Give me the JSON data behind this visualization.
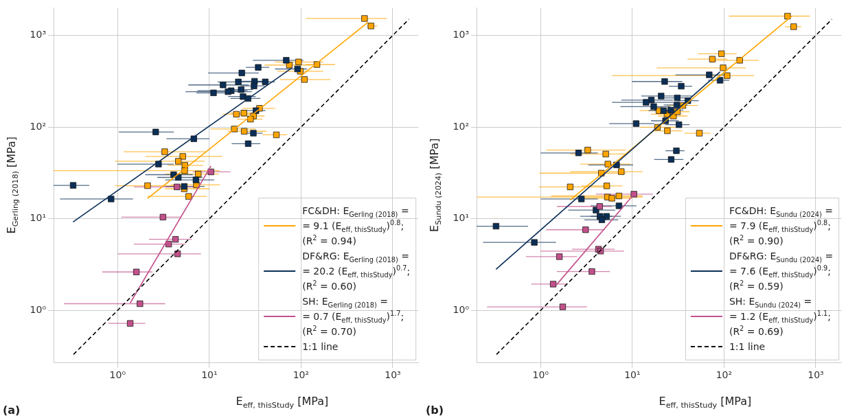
{
  "chart_data": [
    {
      "type": "scatter",
      "xlabel": "E$_{eff, thisStudy}$ [MPa]",
      "ylabel": "E$_{Gerling (2018)}$ [MPa]",
      "annotations": [
        "(a)"
      ],
      "log": "xy",
      "grid": true,
      "legend": "bottom right",
      "xlim": [
        0.2,
        1900
      ],
      "ylim": [
        0.27,
        2000
      ],
      "xticks": [
        {
          "value": 1,
          "label": "10⁰"
        },
        {
          "value": 10,
          "label": "10¹"
        },
        {
          "value": 100,
          "label": "10²"
        },
        {
          "value": 1000,
          "label": "10³"
        }
      ],
      "yticks": [
        {
          "value": 1,
          "label": "10⁰"
        },
        {
          "value": 10,
          "label": "10¹"
        },
        {
          "value": 100,
          "label": "10²"
        },
        {
          "value": 1000,
          "label": "10³"
        }
      ],
      "series": [
        {
          "marker": "square",
          "color": "#ffa500",
          "x": [
            492,
            578,
            94,
            74.5,
            149,
            98,
            109,
            35.2,
            19.7,
            23.8,
            30.3,
            28.1,
            18.7,
            24,
            53.8,
            3.26,
            5.13,
            4.59,
            5.41,
            5.38,
            7.57,
            2.12,
            5.32,
            7.22,
            5.95
          ],
          "values": [
            1530,
            1267,
            513,
            475,
            481,
            406,
            330,
            160,
            138,
            142,
            132,
            122,
            95.2,
            89.9,
            82.2,
            53.8,
            47.8,
            42.3,
            38.2,
            33.4,
            30.7,
            22.9,
            21.2,
            23.4,
            17.5
          ],
          "xerrors": [
            [
              113,
              863
            ],
            [
              522,
              681
            ],
            [
              52,
              175
            ],
            [
              40,
              134
            ],
            [
              112,
              235
            ],
            [
              55,
              175
            ],
            [
              59,
              209
            ],
            [
              23,
              52
            ],
            [
              14,
              34
            ],
            [
              17,
              35
            ],
            [
              22,
              40
            ],
            [
              20,
              38
            ],
            [
              10.3,
              32
            ],
            [
              16,
              42
            ],
            [
              38,
              70
            ],
            [
              1.16,
              9.4
            ],
            [
              2,
              13.8
            ],
            [
              0.94,
              8.9
            ],
            [
              3.5,
              8.5
            ],
            [
              0.2,
              13
            ],
            [
              3.3,
              12.7
            ],
            [
              0.94,
              4.9
            ],
            [
              3.3,
              10
            ],
            [
              3.8,
              13
            ],
            [
              2.1,
              9.4
            ]
          ]
        },
        {
          "marker": "square",
          "color": "#0b2f57",
          "x": [
            68.9,
            91.5,
            34.1,
            22.6,
            20.7,
            31.1,
            40.7,
            14.1,
            30.7,
            17.3,
            16,
            22.2,
            11.1,
            23.3,
            26.4,
            32.2,
            2.6,
            6.77,
            30.2,
            26.5,
            2.79,
            4.08,
            4.59,
            7.14,
            5.32,
            0.327,
            0.848
          ],
          "values": [
            535,
            430,
            448,
            389,
            311,
            316,
            311,
            288,
            281,
            249,
            243,
            256,
            236,
            215,
            205,
            151,
            88.3,
            74.5,
            85.7,
            65.8,
            39.4,
            30.2,
            28.2,
            26.5,
            22.5,
            23.1,
            16.4
          ],
          "xerrors": [
            [
              29.8,
              106
            ],
            [
              52,
              116
            ],
            [
              25,
              45
            ],
            [
              9.7,
              34.5
            ],
            [
              12.3,
              45
            ],
            [
              22,
              42
            ],
            [
              31,
              52
            ],
            [
              5.9,
              27
            ],
            [
              22,
              40
            ],
            [
              7.4,
              26
            ],
            [
              5.5,
              29
            ],
            [
              15,
              30
            ],
            [
              7.2,
              17
            ],
            [
              16,
              32
            ],
            [
              17,
              36
            ],
            [
              22,
              41
            ],
            [
              1.03,
              4.1
            ],
            [
              3.4,
              10
            ],
            [
              23.5,
              38
            ],
            [
              17.5,
              36
            ],
            [
              1,
              4.1
            ],
            [
              2,
              6.6
            ],
            [
              2.7,
              8.4
            ],
            [
              3.3,
              11.3
            ],
            [
              3.3,
              8.9
            ],
            [
              0.2,
              0.49
            ],
            [
              0.235,
              1.47
            ]
          ]
        },
        {
          "marker": "square",
          "color": "#c2508b",
          "x": [
            10.4,
            4.43,
            3.12,
            4.27,
            3.6,
            4.5,
            1.6,
            1.75,
            1.37
          ],
          "values": [
            32.4,
            22.2,
            10.4,
            5.95,
            5.28,
            4.13,
            2.62,
            1.18,
            0.72
          ],
          "xerrors": [
            [
              6.6,
              17
            ],
            [
              1.5,
              7.4
            ],
            [
              1.1,
              4.9
            ],
            [
              2.2,
              6.4
            ],
            [
              1.5,
              5.5
            ],
            [
              1,
              8.1
            ],
            [
              0.68,
              2.4
            ],
            [
              0.26,
              3.3
            ],
            [
              0.79,
              2
            ]
          ]
        },
        {
          "type": "line",
          "name": "FC&DH: E$_{Gerling (2018)}$ =\n= 9.1 (E$_{eff, thisStudy}$)$^{0.8}$;\n(R$^{2}$ = 0.94)",
          "color": "#ffa500",
          "x": [
            2.12,
            538
          ],
          "values": [
            16.6,
            1390
          ]
        },
        {
          "type": "line",
          "name": "DF&RG: E$_{Gerling (2018)}$ =\n= 20.2 (E$_{eff, thisStudy}$)$^{0.7}$;\n(R$^{2}$ = 0.60)",
          "color": "#0b2f57",
          "x": [
            0.326,
            79
          ],
          "values": [
            9.2,
            440
          ]
        },
        {
          "type": "line",
          "name": "SH: E$_{Gerling (2018)}$ =\n= 0.7 (E$_{eff, thisStudy}$)$^{1.7}$;\n(R$^{2}$ = 0.70)",
          "color": "#c2508b",
          "x": [
            1.37,
            10.4
          ],
          "values": [
            1.2,
            37.5
          ]
        },
        {
          "type": "line",
          "name": "1:1 line",
          "color": "#000000",
          "line_style": "dashed",
          "x": [
            0.33,
            1500
          ],
          "values": [
            0.33,
            1500
          ]
        }
      ]
    },
    {
      "type": "scatter",
      "xlabel": "E$_{eff, thisStudy}$ [MPa]",
      "ylabel": "E$_{Sundu (2024)}$ [MPa]",
      "annotations": [
        "(b)"
      ],
      "log": "xy",
      "grid": true,
      "legend": "bottom right",
      "xlim": [
        0.2,
        1900
      ],
      "ylim": [
        0.27,
        2000
      ],
      "xticks": [
        {
          "value": 1,
          "label": "10⁰"
        },
        {
          "value": 10,
          "label": "10¹"
        },
        {
          "value": 100,
          "label": "10²"
        },
        {
          "value": 1000,
          "label": "10³"
        }
      ],
      "yticks": [
        {
          "value": 1,
          "label": "10⁰"
        },
        {
          "value": 10,
          "label": "10¹"
        },
        {
          "value": 100,
          "label": "10²"
        },
        {
          "value": 1000,
          "label": "10³"
        }
      ],
      "series": [
        {
          "marker": "square",
          "color": "#ffa500",
          "x": [
            492,
            574,
            93.7,
            74.5,
            148,
            97.7,
            108,
            35.6,
            19.5,
            23.9,
            28.1,
            30.9,
            18.8,
            24.1,
            53.8,
            3.26,
            5.13,
            5.41,
            4.59,
            7.57,
            2.1,
            5.26,
            5.35,
            7.14,
            5.98
          ],
          "values": [
            1623,
            1245,
            631,
            551,
            535,
            443,
            364,
            172,
            151,
            138,
            132,
            147,
            99.4,
            91,
            85.7,
            56.1,
            50.7,
            39.4,
            31.4,
            32.6,
            22.2,
            22.8,
            17.2,
            17.7,
            16.7
          ],
          "xerrors": [
            [
              113,
              863
            ],
            [
              459,
              693
            ],
            [
              52,
              137
            ],
            [
              40,
              108
            ],
            [
              80,
              239
            ],
            [
              18.4,
              173
            ],
            [
              6,
              213
            ],
            [
              24,
              52
            ],
            [
              12,
              30
            ],
            [
              16,
              35
            ],
            [
              19,
              40
            ],
            [
              21,
              42
            ],
            [
              12.2,
              29.5
            ],
            [
              17,
              35
            ],
            [
              37,
              71
            ],
            [
              1.15,
              8.5
            ],
            [
              2.1,
              8.3
            ],
            [
              2.7,
              9.6
            ],
            [
              0.97,
              8.5
            ],
            [
              2.1,
              13
            ],
            [
              0.96,
              5
            ],
            [
              2.8,
              7.8
            ],
            [
              0.2,
              13
            ],
            [
              1.3,
              12.9
            ],
            [
              3,
              10
            ]
          ]
        },
        {
          "marker": "square",
          "color": "#0b2f57",
          "x": [
            68.9,
            90.4,
            22.5,
            34.1,
            20.6,
            30.9,
            40.3,
            16.1,
            14.1,
            17.1,
            30.5,
            21.9,
            26.2,
            23,
            11,
            32.2,
            30.2,
            26.5,
            2.59,
            6.73,
            2.78,
            7.14,
            4.01,
            4.43,
            5.22,
            4.65,
            0.326,
            0.853
          ],
          "values": [
            371,
            324,
            314,
            279,
            218,
            208,
            194,
            197,
            186,
            167,
            174,
            151,
            153,
            117,
            109,
            106,
            55.1,
            44.3,
            52.2,
            38.6,
            16.4,
            13.8,
            12.4,
            10.6,
            10.6,
            9.71,
            8.28,
            5.51
          ],
          "xerrors": [
            [
              29.5,
              108
            ],
            [
              67,
              114
            ],
            [
              9.9,
              35
            ],
            [
              25,
              45
            ],
            [
              12.5,
              46
            ],
            [
              22,
              42
            ],
            [
              31,
              53
            ],
            [
              7.6,
              28
            ],
            [
              6,
              28
            ],
            [
              7.4,
              26
            ],
            [
              22,
              40
            ],
            [
              15,
              30
            ],
            [
              17.3,
              36
            ],
            [
              16,
              32
            ],
            [
              5.6,
              17.3
            ],
            [
              23,
              42
            ],
            [
              23,
              37
            ],
            [
              17.3,
              36
            ],
            [
              1,
              4.2
            ],
            [
              3.3,
              10.2
            ],
            [
              1,
              4.2
            ],
            [
              3.5,
              11.1
            ],
            [
              2,
              6.5
            ],
            [
              2.7,
              6
            ],
            [
              3.5,
              7.5
            ],
            [
              3,
              7
            ],
            [
              0.2,
              0.73
            ],
            [
              0.235,
              1.47
            ]
          ]
        },
        {
          "marker": "square",
          "color": "#c2508b",
          "x": [
            10.4,
            4.4,
            3.09,
            4.27,
            4.5,
            1.6,
            3.62,
            1.37,
            1.74
          ],
          "values": [
            18.5,
            13.6,
            7.57,
            4.64,
            4.43,
            3.85,
            2.65,
            1.93,
            1.09
          ],
          "xerrors": [
            [
              4,
              16.8
            ],
            [
              1.5,
              6
            ],
            [
              1.15,
              5
            ],
            [
              2.2,
              6.4
            ],
            [
              1,
              8.1
            ],
            [
              0.69,
              2.5
            ],
            [
              1.5,
              5.7
            ],
            [
              0.79,
              1.95
            ],
            [
              0.26,
              3.2
            ]
          ]
        },
        {
          "type": "line",
          "name": "FC&DH: E$_{Sundu (2024)}$ =\n= 7.9 (E$_{eff, thisStudy}$)$^{0.8}$;\n(R$^{2}$ = 0.90)",
          "color": "#ffa500",
          "x": [
            2.1,
            548
          ],
          "values": [
            16,
            1620
          ]
        },
        {
          "type": "line",
          "name": "DF&RG: E$_{Sundu (2024)}$ =\n= 7.6 (E$_{eff, thisStudy}$)$^{0.9}$;\n(R$^{2}$ = 0.59)",
          "color": "#0b2f57",
          "x": [
            0.326,
            90.4
          ],
          "values": [
            2.8,
            400
          ]
        },
        {
          "type": "line",
          "name": "SH: E$_{Sundu (2024)}$ =\n= 1.2 (E$_{eff, thisStudy}$)$^{1.1}$;\n(R$^{2}$ = 0.69)",
          "color": "#c2508b",
          "x": [
            1.49,
            10.4
          ],
          "values": [
            1.9,
            18.5
          ]
        },
        {
          "type": "line",
          "name": "1:1 line",
          "color": "#000000",
          "line_style": "dashed",
          "x": [
            0.33,
            1500
          ],
          "values": [
            0.33,
            1500
          ]
        }
      ]
    }
  ]
}
